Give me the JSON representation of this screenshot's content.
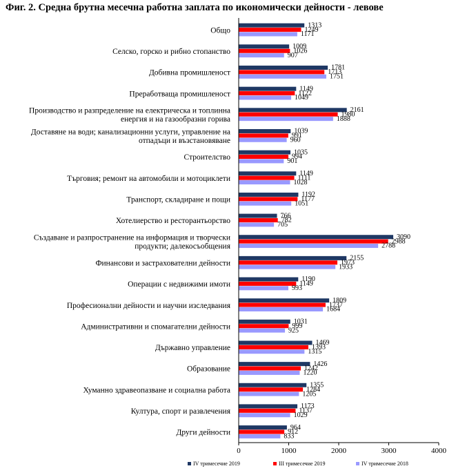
{
  "title": "Фиг. 2. Средна брутна месечна работна заплата по икономически дейности - левове",
  "chart_data": {
    "type": "bar",
    "orientation": "horizontal",
    "title": "Фиг. 2. Средна брутна месечна работна заплата по икономически дейности - левове",
    "xlabel": "",
    "ylabel": "",
    "xlim": [
      0,
      4000
    ],
    "x_ticks": [
      "0",
      "1000",
      "2000",
      "3000",
      "4000"
    ],
    "grid": false,
    "legend_position": "bottom",
    "categories": [
      [
        "Общо"
      ],
      [
        "Селско, горско и рибно стопанство"
      ],
      [
        "Добивна промишленост"
      ],
      [
        "Преработваща промишленост"
      ],
      [
        "Производство и разпределение на електрическа и топлинна",
        "енергия и на газообразни горива"
      ],
      [
        "Доставяне на води; канализационни услуги, управление на",
        "отпадъци и възстановяване"
      ],
      [
        "Строителство"
      ],
      [
        "Търговия; ремонт на автомобили и мотоциклети"
      ],
      [
        "Транспорт, складиране и пощи"
      ],
      [
        "Хотелиерство и ресторантьорство"
      ],
      [
        "Създаване и разпространение на информация и творчески",
        "продукти; далекосъобщения"
      ],
      [
        "Финансови и застрахователни дейности"
      ],
      [
        "Операции с недвижими имоти"
      ],
      [
        "Професионални дейности и научни изследвания"
      ],
      [
        "Административни и спомагателни дейности"
      ],
      [
        "Държавно управление"
      ],
      [
        "Образование"
      ],
      [
        "Хуманно здравеопазване и социална работа"
      ],
      [
        "Култура, спорт и развлечения"
      ],
      [
        "Други дейности"
      ]
    ],
    "series": [
      {
        "name": "IV тримесечие 2019",
        "color": "#1F3864",
        "values": [
          1313,
          1009,
          1781,
          1149,
          2161,
          1039,
          1035,
          1149,
          1192,
          766,
          3090,
          2155,
          1190,
          1809,
          1031,
          1469,
          1426,
          1355,
          1173,
          964
        ]
      },
      {
        "name": "III тримесечие 2019",
        "color": "#FF0000",
        "values": [
          1249,
          1026,
          1713,
          1122,
          1980,
          991,
          994,
          1111,
          1177,
          782,
          2988,
          1973,
          1149,
          1737,
          999,
          1393,
          1242,
          1284,
          1137,
          912
        ]
      },
      {
        "name": "IV тримесечие 2018",
        "color": "#9999FF",
        "values": [
          1171,
          907,
          1751,
          1049,
          1888,
          960,
          901,
          1028,
          1051,
          705,
          2788,
          1933,
          993,
          1684,
          925,
          1315,
          1220,
          1205,
          1029,
          833
        ]
      }
    ]
  }
}
